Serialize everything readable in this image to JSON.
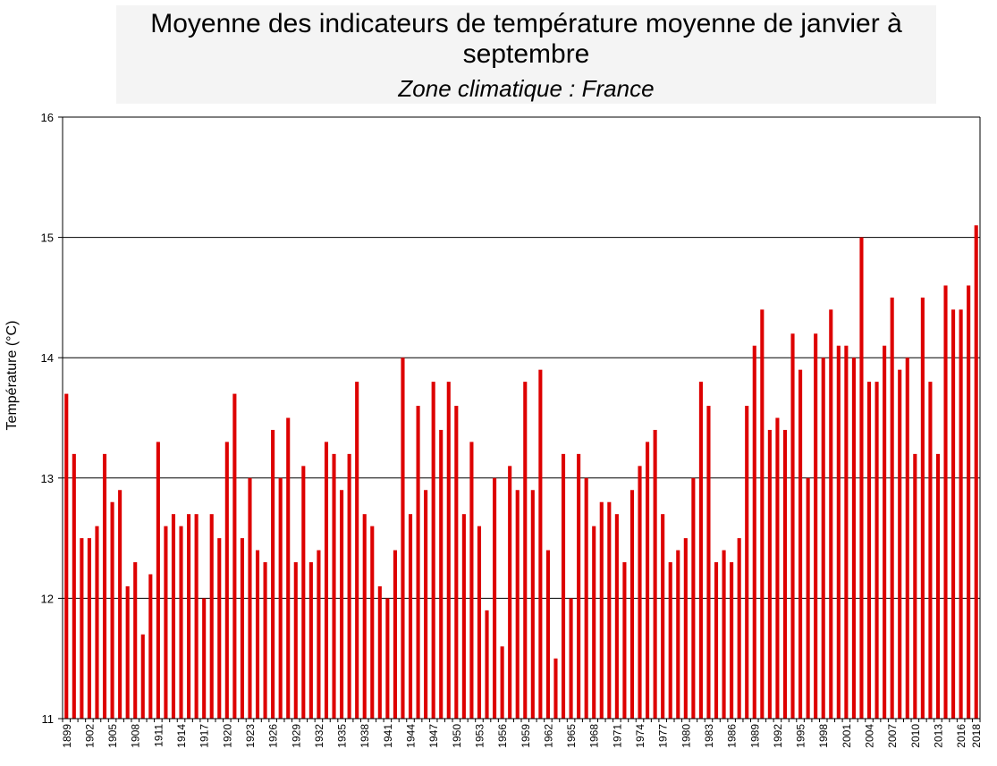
{
  "chart_data": {
    "type": "bar",
    "title": "Moyenne des indicateurs de température moyenne de janvier à septembre",
    "subtitle": "Zone climatique : France",
    "xlabel": "",
    "ylabel": "Température (°C)",
    "ylim": [
      11,
      16
    ],
    "yticks": [
      11,
      12,
      13,
      14,
      15,
      16
    ],
    "grid": true,
    "bar_color": "#dd0000",
    "x_start": 1899,
    "x_end": 2018,
    "tick_labels": [
      "1899",
      "1902",
      "1905",
      "1908",
      "1911",
      "1914",
      "1917",
      "1920",
      "1923",
      "1926",
      "1929",
      "1932",
      "1935",
      "1938",
      "1941",
      "1944",
      "1947",
      "1950",
      "1953",
      "1956",
      "1959",
      "1962",
      "1965",
      "1968",
      "1971",
      "1974",
      "1977",
      "1980",
      "1983",
      "1986",
      "1989",
      "1992",
      "1995",
      "1998",
      "2001",
      "2004",
      "2007",
      "2010",
      "2013",
      "2016",
      "2018"
    ],
    "values": [
      13.7,
      13.2,
      12.5,
      12.5,
      12.6,
      13.2,
      12.8,
      12.9,
      12.1,
      12.3,
      11.7,
      12.2,
      13.3,
      12.6,
      12.7,
      12.6,
      12.7,
      12.7,
      12.0,
      12.7,
      12.5,
      13.3,
      13.7,
      12.5,
      13.0,
      12.4,
      12.3,
      13.4,
      13.0,
      13.5,
      12.3,
      13.1,
      12.3,
      12.4,
      13.3,
      13.2,
      12.9,
      13.2,
      13.8,
      12.7,
      12.6,
      12.1,
      12.0,
      12.4,
      14.0,
      12.7,
      13.6,
      12.9,
      13.8,
      13.4,
      13.8,
      13.6,
      12.7,
      13.3,
      12.6,
      11.9,
      13.0,
      11.6,
      13.1,
      12.9,
      13.8,
      12.9,
      13.9,
      12.4,
      11.5,
      13.2,
      12.0,
      13.2,
      13.0,
      12.6,
      12.8,
      12.8,
      12.7,
      12.3,
      12.9,
      13.1,
      13.3,
      13.4,
      12.7,
      12.3,
      12.4,
      12.5,
      13.0,
      13.8,
      13.6,
      12.3,
      12.4,
      12.3,
      12.5,
      13.6,
      14.1,
      14.4,
      13.4,
      13.5,
      13.4,
      14.2,
      13.9,
      13.0,
      14.2,
      14.0,
      14.4,
      14.1,
      14.1,
      14.0,
      15.0,
      13.8,
      13.8,
      14.1,
      14.5,
      13.9,
      14.0,
      13.2,
      14.5,
      13.8,
      13.2,
      14.6,
      14.4,
      14.4,
      14.6,
      15.1
    ]
  }
}
